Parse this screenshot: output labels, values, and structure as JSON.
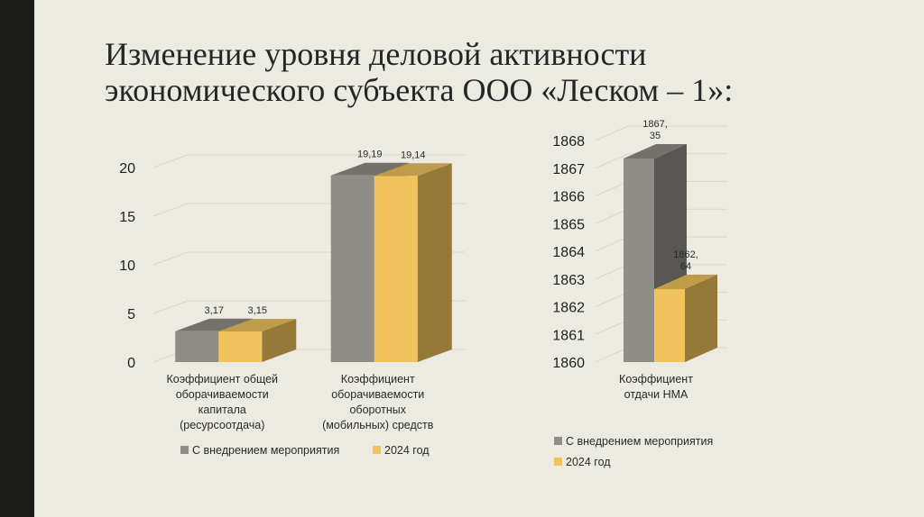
{
  "slide": {
    "title_line1": "Изменение уровня деловой активности",
    "title_line2": "экономического субъекта ООО «Леском – 1»:"
  },
  "colors": {
    "series1": "#8e8d86",
    "series2": "#f0c35c",
    "background": "#ecebe2",
    "sidebar": "#1c1c1a"
  },
  "chart_data": [
    {
      "type": "bar",
      "categories": [
        [
          "Коэффициент общей",
          "оборачиваемости",
          "капитала",
          "(ресурсоотдача)"
        ],
        [
          "Коэффициент",
          "оборачиваемости",
          "оборотных",
          "(мобильных) средств"
        ]
      ],
      "series": [
        {
          "name": "С внедрением мероприятия",
          "values": [
            3.17,
            19.19
          ],
          "labels": [
            "3,17",
            "19,19"
          ]
        },
        {
          "name": "2024 год",
          "values": [
            3.15,
            19.14
          ],
          "labels": [
            "3,15",
            "19,14"
          ]
        }
      ],
      "yticks": [
        "0",
        "5",
        "10",
        "15",
        "20"
      ],
      "ylim": [
        0,
        20
      ],
      "grid": true,
      "legend": "bottom"
    },
    {
      "type": "bar",
      "categories": [
        [
          "Коэффициент",
          "отдачи НМА"
        ]
      ],
      "series": [
        {
          "name": "С внедрением мероприятия",
          "values": [
            1867.35
          ],
          "labels": [
            [
              "1867,",
              "35"
            ]
          ]
        },
        {
          "name": "2024 год",
          "values": [
            1862.64
          ],
          "labels": [
            [
              "1862,",
              "64"
            ]
          ]
        }
      ],
      "yticks": [
        "1860",
        "1861",
        "1862",
        "1863",
        "1864",
        "1865",
        "1866",
        "1867",
        "1868"
      ],
      "ylim": [
        1860,
        1868
      ],
      "grid": true,
      "legend": "bottom"
    }
  ]
}
